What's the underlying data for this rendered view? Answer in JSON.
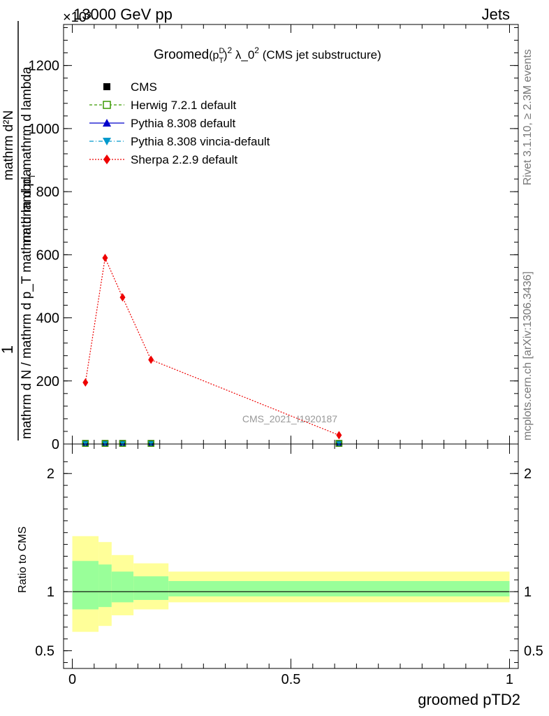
{
  "header": {
    "left": "13000 GeV pp",
    "right": "Jets",
    "exponent": "×10³"
  },
  "side_text": {
    "rivet": "Rivet 3.1.10, ≥ 2.3M events",
    "mcplots": "mcplots.cern.ch [arXiv:1306.3436]"
  },
  "watermark": "CMS_2021_I1920187",
  "plot_title": {
    "prefix": "Groomed",
    "p": "(p",
    "sup_d": "D",
    "sub_t": "T",
    "close": ")",
    "sup2": "2",
    "lam": " λ_0",
    "sup2b": "2",
    "suffix": " (CMS jet substructure)"
  },
  "ylabel_main": {
    "one": "1",
    "denominator": "mathrm d N / mathrm d p_T mathrm d lambda",
    "numerator": "mathrm d²N",
    "numerator_lower": "mathrm d p",
    "sub_T": "T",
    "numerator_tail": " mathrm d lambda"
  },
  "ylabel_ratio": "Ratio to CMS",
  "xlabel": "groomed pTD2",
  "colors": {
    "cms": "#000000",
    "herwig": "#3a9a00",
    "pythia": "#0000cc",
    "vincia": "#0099cc",
    "sherpa": "#ee0000",
    "band_outer": "#ffff99",
    "band_inner": "#99ff99"
  },
  "chart_data": [
    {
      "type": "scatter",
      "title": "Groomed (p_T^D)^2 λ_0^2 (CMS jet substructure)",
      "xlabel": "groomed pTD2",
      "ylabel": "1/(dN/dp_T dlambda) d²N/(dp_T dlambda)",
      "xlim": [
        -0.02,
        1.02
      ],
      "ylim": [
        0,
        1330
      ],
      "y_scale_note": "×10³",
      "yticks": [
        0,
        200,
        400,
        600,
        800,
        1000,
        1200
      ],
      "ytick_labels": [
        "0",
        "200",
        "400",
        "600",
        "800",
        "1000",
        "1200"
      ],
      "legend": [
        "CMS",
        "Herwig 7.2.1 default",
        "Pythia 8.308 default",
        "Pythia 8.308 vincia-default",
        "Sherpa 2.2.9 default"
      ],
      "legend_position": "top-left",
      "series": [
        {
          "name": "CMS",
          "x": [
            0.03,
            0.075,
            0.115,
            0.18,
            0.61
          ],
          "values": [
            2,
            2,
            2,
            2,
            2
          ]
        },
        {
          "name": "Herwig 7.2.1 default",
          "x": [
            0.03,
            0.075,
            0.115,
            0.18,
            0.61
          ],
          "values": [
            2,
            2,
            2,
            2,
            2
          ]
        },
        {
          "name": "Pythia 8.308 default",
          "x": [
            0.03,
            0.075,
            0.115,
            0.18,
            0.61
          ],
          "values": [
            2,
            2,
            2,
            2,
            2
          ]
        },
        {
          "name": "Pythia 8.308 vincia-default",
          "x": [
            0.03,
            0.075,
            0.115,
            0.18,
            0.61
          ],
          "values": [
            2,
            2,
            2,
            2,
            2
          ]
        },
        {
          "name": "Sherpa 2.2.9 default",
          "x": [
            0.03,
            0.075,
            0.115,
            0.18,
            0.61
          ],
          "values": [
            195,
            590,
            465,
            267,
            28
          ]
        }
      ]
    },
    {
      "type": "area",
      "title": "Ratio to CMS",
      "xlabel": "groomed pTD2",
      "ylabel": "Ratio to CMS",
      "xlim": [
        -0.02,
        1.02
      ],
      "ylim": [
        0.35,
        2.25
      ],
      "yticks": [
        0.5,
        1,
        2
      ],
      "ytick_labels": [
        "0.5",
        "1",
        "2"
      ],
      "xticks": [
        0,
        0.5,
        1
      ],
      "xtick_labels": [
        "0",
        "0.5",
        "1"
      ],
      "reference_line": 1,
      "bins": [
        {
          "x0": 0.0,
          "x1": 0.06,
          "outer": [
            0.66,
            1.47
          ],
          "inner": [
            0.85,
            1.26
          ]
        },
        {
          "x0": 0.06,
          "x1": 0.09,
          "outer": [
            0.71,
            1.42
          ],
          "inner": [
            0.87,
            1.23
          ]
        },
        {
          "x0": 0.09,
          "x1": 0.14,
          "outer": [
            0.8,
            1.31
          ],
          "inner": [
            0.91,
            1.17
          ]
        },
        {
          "x0": 0.14,
          "x1": 0.22,
          "outer": [
            0.85,
            1.24
          ],
          "inner": [
            0.93,
            1.13
          ]
        },
        {
          "x0": 0.22,
          "x1": 1.0,
          "outer": [
            0.91,
            1.17
          ],
          "inner": [
            0.96,
            1.09
          ]
        }
      ]
    }
  ]
}
